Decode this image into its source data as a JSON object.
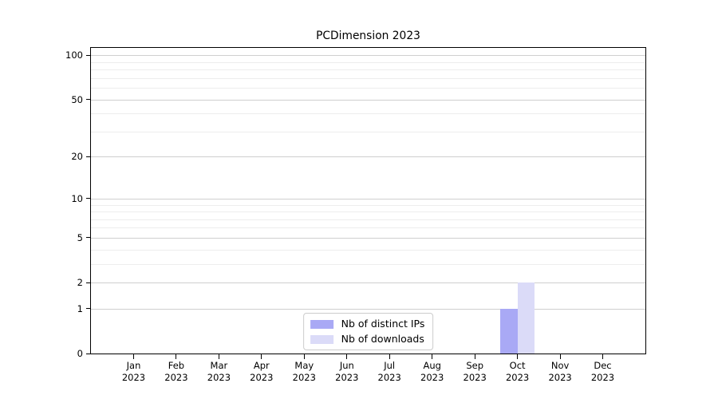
{
  "chart_data": {
    "type": "bar",
    "title": "PCDimension 2023",
    "categories": [
      "Jan 2023",
      "Feb 2023",
      "Mar 2023",
      "Apr 2023",
      "May 2023",
      "Jun 2023",
      "Jul 2023",
      "Aug 2023",
      "Sep 2023",
      "Oct 2023",
      "Nov 2023",
      "Dec 2023"
    ],
    "series": [
      {
        "name": "Nb of distinct IPs",
        "color": "#a9a9f5",
        "values": [
          0,
          0,
          0,
          0,
          0,
          0,
          0,
          0,
          0,
          1,
          0,
          0
        ]
      },
      {
        "name": "Nb of downloads",
        "color": "#dbdbf8",
        "values": [
          0,
          0,
          0,
          0,
          0,
          0,
          0,
          0,
          0,
          2,
          0,
          0
        ]
      }
    ],
    "yscale": "log1p",
    "ylim": [
      0,
      112
    ],
    "y_ticks": [
      0,
      1,
      2,
      5,
      10,
      20,
      50,
      100
    ],
    "y_minor_gridlines": [
      3,
      4,
      6,
      7,
      8,
      9,
      30,
      40,
      60,
      70,
      80,
      90
    ],
    "grid": "horizontal",
    "legend_position": "lower center",
    "colors": {
      "axis": "#000000",
      "major_grid": "#cfcfcf",
      "minor_grid": "#ededed",
      "background": "#ffffff"
    }
  }
}
